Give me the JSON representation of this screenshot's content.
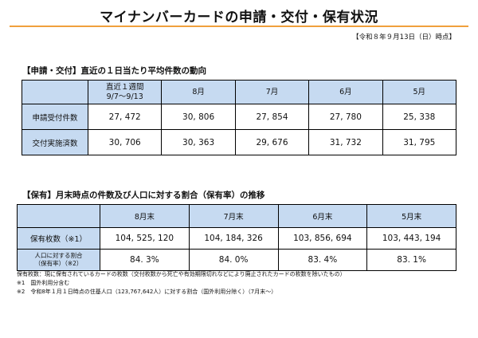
{
  "title": "マイナンバーカードの申請・交付・保有状況",
  "as_of": "【令和８年９月13日（日）時点】",
  "section1": {
    "heading": "【申請・交付】直近の１日当たり平均件数の動向",
    "columns": [
      {
        "line1": "直近１週間",
        "line2": "9/7～9/13"
      },
      {
        "line1": "8月",
        "line2": ""
      },
      {
        "line1": "7月",
        "line2": ""
      },
      {
        "line1": "6月",
        "line2": ""
      },
      {
        "line1": "5月",
        "line2": ""
      }
    ],
    "rows": [
      {
        "label": "申請受付件数",
        "values": [
          "27, 472",
          "30, 806",
          "27, 854",
          "27, 780",
          "25, 338"
        ]
      },
      {
        "label": "交付実施済数",
        "values": [
          "30, 706",
          "30, 363",
          "29, 676",
          "31, 732",
          "31, 795"
        ]
      }
    ]
  },
  "section2": {
    "heading": "【保有】月末時点の件数及び人口に対する割合（保有率）の推移",
    "columns": [
      "8月末",
      "7月末",
      "6月末",
      "5月末"
    ],
    "rows": [
      {
        "label_line1": "保有枚数（※1）",
        "label_line2": "",
        "values": [
          "104, 525, 120",
          "104, 184, 326",
          "103, 856, 694",
          "103, 443, 194"
        ]
      },
      {
        "label_line1": "人口に対する割合",
        "label_line2": "（保有率）（※2）",
        "values": [
          "84. 3%",
          "84. 0%",
          "83. 4%",
          "83. 1%"
        ]
      }
    ]
  },
  "notes": [
    "保有枚数：現に保有されているカードの枚数（交付枚数から死亡や有効期限切れなどにより廃止されたカードの枚数を除いたもの）",
    "※1　国外利用分含む",
    "※2　令和8年１月１日時点の住基人口（123,767,642人）に対する割合（国外利用分除く）（7月末～）"
  ],
  "colors": {
    "header_fill": "#c6daf1",
    "title_rule": "#f0a03c"
  }
}
